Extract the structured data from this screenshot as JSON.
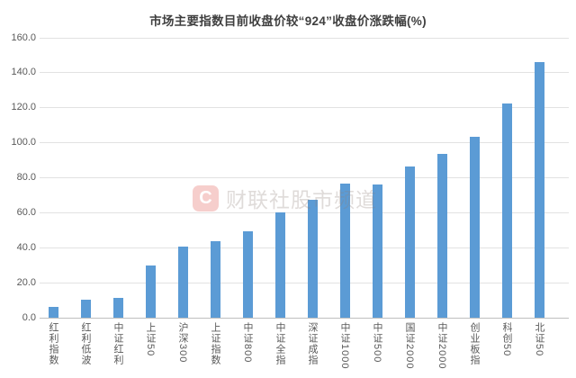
{
  "title": "市场主要指数目前收盘价较“924”收盘价涨跌幅(%)",
  "watermark": {
    "logo_letter": "C",
    "text": "财联社股市频道"
  },
  "chart_data": {
    "type": "bar",
    "title": "市场主要指数目前收盘价较“924”收盘价涨跌幅(%)",
    "categories": [
      "红利指数",
      "红利低波",
      "中证红利",
      "上证50",
      "沪深300",
      "上证指数",
      "中证800",
      "中证全指",
      "深证成指",
      "中证1000",
      "中证500",
      "国证2000",
      "中证2000",
      "创业板指",
      "科创50",
      "北证50"
    ],
    "values": [
      6.0,
      10.5,
      11.5,
      30.0,
      40.4,
      43.5,
      49.2,
      60.2,
      67.4,
      76.9,
      76.2,
      86.6,
      93.5,
      103.2,
      122.5,
      146.2
    ],
    "xlabel": "",
    "ylabel": "",
    "ylim": [
      0,
      160
    ],
    "ytick_step": 20,
    "ytick_decimals": 1,
    "grid": true,
    "legend": "none",
    "bar_color": "#5b9bd5",
    "gridline_color": "#e2e2e2",
    "axis_line_color": "#bfbfbf",
    "tick_label_color": "#595959",
    "title_color": "#3f3f3f"
  }
}
